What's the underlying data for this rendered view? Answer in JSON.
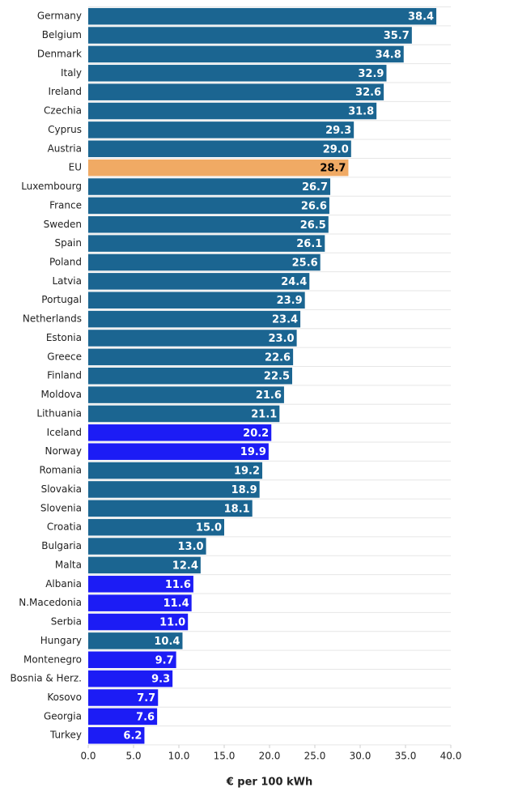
{
  "chart_data": {
    "type": "bar",
    "orientation": "horizontal",
    "x_label": "€ per 100 kWh",
    "categories": [
      "Germany",
      "Belgium",
      "Denmark",
      "Italy",
      "Ireland",
      "Czechia",
      "Cyprus",
      "Austria",
      "EU",
      "Luxembourg",
      "France",
      "Sweden",
      "Spain",
      "Poland",
      "Latvia",
      "Portugal",
      "Netherlands",
      "Estonia",
      "Greece",
      "Finland",
      "Moldova",
      "Lithuania",
      "Iceland",
      "Norway",
      "Romania",
      "Slovakia",
      "Slovenia",
      "Croatia",
      "Bulgaria",
      "Malta",
      "Albania",
      "N.Macedonia",
      "Serbia",
      "Hungary",
      "Montenegro",
      "Bosnia & Herz.",
      "Kosovo",
      "Georgia",
      "Turkey"
    ],
    "values": [
      38.4,
      35.7,
      34.8,
      32.9,
      32.6,
      31.8,
      29.3,
      29.0,
      28.7,
      26.7,
      26.6,
      26.5,
      26.1,
      25.6,
      24.4,
      23.9,
      23.4,
      23.0,
      22.6,
      22.5,
      21.6,
      21.1,
      20.2,
      19.9,
      19.2,
      18.9,
      18.1,
      15.0,
      13.0,
      12.4,
      11.6,
      11.4,
      11.0,
      10.4,
      9.7,
      9.3,
      7.7,
      7.6,
      6.2
    ],
    "value_labels": [
      "38.4",
      "35.7",
      "34.8",
      "32.9",
      "32.6",
      "31.8",
      "29.3",
      "29.0",
      "28.7",
      "26.7",
      "26.6",
      "26.5",
      "26.1",
      "25.6",
      "24.4",
      "23.9",
      "23.4",
      "23.0",
      "22.6",
      "22.5",
      "21.6",
      "21.1",
      "20.2",
      "19.9",
      "19.2",
      "18.9",
      "18.1",
      "15.0",
      "13.0",
      "12.4",
      "11.6",
      "11.4",
      "11.0",
      "10.4",
      "9.7",
      "9.3",
      "7.7",
      "7.6",
      "6.2"
    ],
    "colors": [
      "#1b6591",
      "#1b6591",
      "#1b6591",
      "#1b6591",
      "#1b6591",
      "#1b6591",
      "#1b6591",
      "#1b6591",
      "#f0aa64",
      "#1b6591",
      "#1b6591",
      "#1b6591",
      "#1b6591",
      "#1b6591",
      "#1b6591",
      "#1b6591",
      "#1b6591",
      "#1b6591",
      "#1b6591",
      "#1b6591",
      "#1b6591",
      "#1b6591",
      "#1c1cf5",
      "#1c1cf5",
      "#1b6591",
      "#1b6591",
      "#1b6591",
      "#1b6591",
      "#1b6591",
      "#1b6591",
      "#1c1cf5",
      "#1c1cf5",
      "#1c1cf5",
      "#1b6591",
      "#1c1cf5",
      "#1c1cf5",
      "#1c1cf5",
      "#1c1cf5",
      "#1c1cf5"
    ],
    "xlim": [
      0,
      40
    ],
    "xticks": [
      {
        "value": 0,
        "label": "0.0"
      },
      {
        "value": 5,
        "label": "5.0"
      },
      {
        "value": 10,
        "label": "10.0"
      },
      {
        "value": 15,
        "label": "15.0"
      },
      {
        "value": 20,
        "label": "20.0"
      },
      {
        "value": 25,
        "label": "25.0"
      },
      {
        "value": 30,
        "label": "30.0"
      },
      {
        "value": 35,
        "label": "35.0"
      },
      {
        "value": 40,
        "label": "40.0"
      }
    ]
  }
}
